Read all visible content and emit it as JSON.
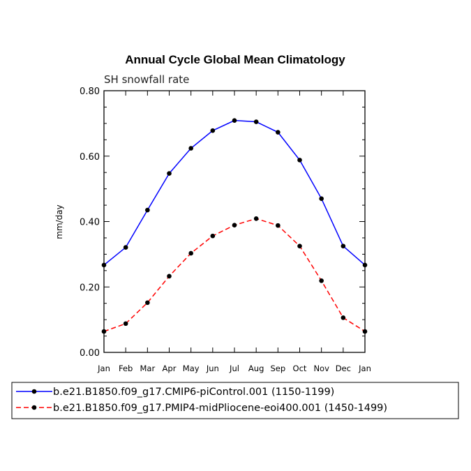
{
  "chart_data": {
    "type": "line",
    "title": "Annual Cycle Global Mean Climatology",
    "subtitle": "SH snowfall rate",
    "ylabel": "mm/day",
    "xlabel": "",
    "ylim": [
      0.0,
      0.8
    ],
    "yticks": [
      "0.00",
      "0.20",
      "0.40",
      "0.60",
      "0.80"
    ],
    "ytick_values": [
      0.0,
      0.2,
      0.4,
      0.6,
      0.8
    ],
    "categories": [
      "Jan",
      "Feb",
      "Mar",
      "Apr",
      "May",
      "Jun",
      "Jul",
      "Aug",
      "Sep",
      "Oct",
      "Nov",
      "Dec",
      "Jan"
    ],
    "grid": false,
    "legend_position": "bottom",
    "series": [
      {
        "name": "b.e21.B1850.f09_g17.CMIP6-piControl.001 (1150-1199)",
        "color": "#0000ff",
        "line_style": "solid",
        "values": [
          0.267,
          0.321,
          0.435,
          0.547,
          0.624,
          0.678,
          0.709,
          0.705,
          0.673,
          0.588,
          0.47,
          0.325,
          0.267
        ]
      },
      {
        "name": "b.e21.B1850.f09_g17.PMIP4-midPliocene-eoi400.001 (1450-1499)",
        "color": "#ff0000",
        "line_style": "dashed",
        "values": [
          0.064,
          0.088,
          0.152,
          0.233,
          0.303,
          0.356,
          0.389,
          0.409,
          0.388,
          0.325,
          0.219,
          0.106,
          0.064
        ]
      }
    ]
  }
}
